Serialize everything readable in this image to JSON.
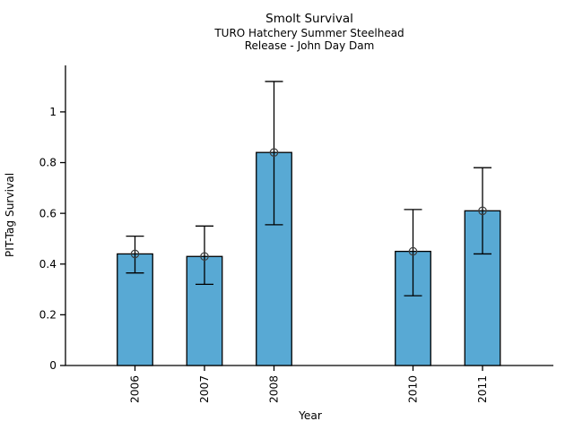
{
  "chart_data": {
    "type": "bar",
    "title": "Smolt Survival",
    "subtitle1": "TURO Hatchery Summer Steelhead",
    "subtitle2": "Release - John Day Dam",
    "xlabel": "Year",
    "ylabel": "PIT-Tag Survival",
    "categories": [
      "2006",
      "2007",
      "2008",
      "2010",
      "2011"
    ],
    "x_positions": [
      2006,
      2007,
      2008,
      2010,
      2011
    ],
    "values": [
      0.44,
      0.43,
      0.84,
      0.45,
      0.61
    ],
    "error_low": [
      0.365,
      0.32,
      0.555,
      0.275,
      0.44
    ],
    "error_high": [
      0.51,
      0.55,
      1.12,
      0.615,
      0.78
    ],
    "y_ticks": [
      0,
      0.2,
      0.4,
      0.6,
      0.8,
      1
    ],
    "ylim": [
      0,
      1.18
    ],
    "xlim": [
      2005,
      2012
    ],
    "grid": false,
    "legend": null,
    "marker": "open-circle",
    "colors": {
      "bar_fill": "#58a9d4",
      "bar_edge": "#000000",
      "error_bar": "#000000",
      "marker_edge": "#3d3d3d",
      "axis": "#000000",
      "background": "#ffffff"
    }
  }
}
